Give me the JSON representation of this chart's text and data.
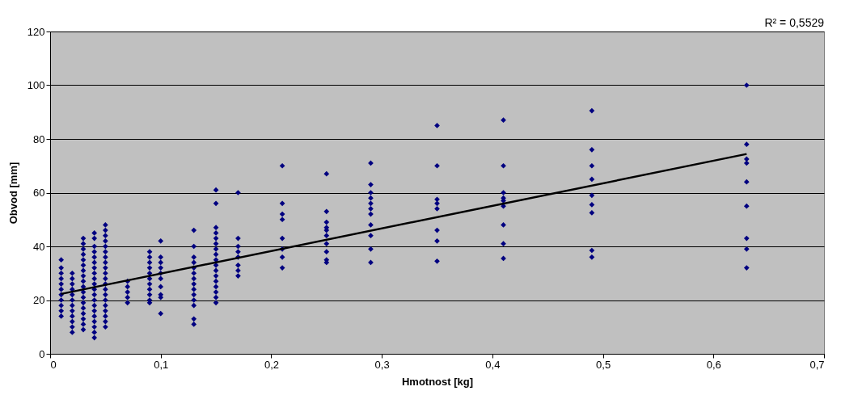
{
  "chart_data": {
    "type": "scatter",
    "xlabel": "Hmotnost [kg]",
    "ylabel": "Obvod [mm]",
    "annotations": [
      "R² = 0,5529"
    ],
    "xlim": [
      0,
      0.7
    ],
    "ylim": [
      0,
      120
    ],
    "xticks": [
      {
        "value": 0,
        "label": "0"
      },
      {
        "value": 0.1,
        "label": "0,1"
      },
      {
        "value": 0.2,
        "label": "0,2"
      },
      {
        "value": 0.3,
        "label": "0,3"
      },
      {
        "value": 0.4,
        "label": "0,4"
      },
      {
        "value": 0.5,
        "label": "0,5"
      },
      {
        "value": 0.6,
        "label": "0,6"
      },
      {
        "value": 0.7,
        "label": "0,7"
      }
    ],
    "yticks": [
      0,
      20,
      40,
      60,
      80,
      100,
      120
    ],
    "grid": "y",
    "marker": "diamond",
    "series": [
      {
        "color": "#000080",
        "x": [
          0.01,
          0.01,
          0.01,
          0.01,
          0.01,
          0.01,
          0.01,
          0.01,
          0.01,
          0.01,
          0.01,
          0.02,
          0.02,
          0.02,
          0.02,
          0.02,
          0.02,
          0.02,
          0.02,
          0.02,
          0.02,
          0.02,
          0.02,
          0.03,
          0.03,
          0.03,
          0.03,
          0.03,
          0.03,
          0.03,
          0.03,
          0.03,
          0.03,
          0.03,
          0.03,
          0.03,
          0.03,
          0.03,
          0.03,
          0.03,
          0.03,
          0.04,
          0.04,
          0.04,
          0.04,
          0.04,
          0.04,
          0.04,
          0.04,
          0.04,
          0.04,
          0.04,
          0.04,
          0.04,
          0.04,
          0.04,
          0.04,
          0.04,
          0.04,
          0.04,
          0.04,
          0.05,
          0.05,
          0.05,
          0.05,
          0.05,
          0.05,
          0.05,
          0.05,
          0.05,
          0.05,
          0.05,
          0.05,
          0.05,
          0.05,
          0.05,
          0.05,
          0.05,
          0.05,
          0.05,
          0.05,
          0.07,
          0.07,
          0.07,
          0.07,
          0.07,
          0.09,
          0.09,
          0.09,
          0.09,
          0.09,
          0.09,
          0.09,
          0.09,
          0.09,
          0.09,
          0.09,
          0.1,
          0.1,
          0.1,
          0.1,
          0.1,
          0.1,
          0.1,
          0.1,
          0.1,
          0.1,
          0.13,
          0.13,
          0.13,
          0.13,
          0.13,
          0.13,
          0.13,
          0.13,
          0.13,
          0.13,
          0.13,
          0.13,
          0.13,
          0.13,
          0.15,
          0.15,
          0.15,
          0.15,
          0.15,
          0.15,
          0.15,
          0.15,
          0.15,
          0.15,
          0.15,
          0.15,
          0.15,
          0.15,
          0.15,
          0.15,
          0.15,
          0.17,
          0.17,
          0.17,
          0.17,
          0.17,
          0.17,
          0.17,
          0.17,
          0.21,
          0.21,
          0.21,
          0.21,
          0.21,
          0.21,
          0.21,
          0.21,
          0.25,
          0.25,
          0.25,
          0.25,
          0.25,
          0.25,
          0.25,
          0.25,
          0.25,
          0.25,
          0.29,
          0.29,
          0.29,
          0.29,
          0.29,
          0.29,
          0.29,
          0.29,
          0.29,
          0.29,
          0.29,
          0.35,
          0.35,
          0.35,
          0.35,
          0.35,
          0.35,
          0.35,
          0.35,
          0.41,
          0.41,
          0.41,
          0.41,
          0.41,
          0.41,
          0.41,
          0.41,
          0.41,
          0.49,
          0.49,
          0.49,
          0.49,
          0.49,
          0.49,
          0.49,
          0.49,
          0.49,
          0.63,
          0.63,
          0.63,
          0.63,
          0.63,
          0.63,
          0.63,
          0.63,
          0.63
        ],
        "values": [
          35,
          32,
          30,
          28,
          26,
          24,
          22,
          20,
          18,
          16,
          14,
          30,
          28,
          26,
          24,
          22,
          20,
          18,
          16,
          14,
          12,
          10,
          8,
          43,
          41,
          39,
          37,
          35,
          33,
          31,
          29,
          27,
          25,
          23,
          21,
          19,
          17,
          15,
          13,
          11,
          9,
          45,
          43,
          40,
          38,
          36,
          34,
          32,
          30,
          28,
          26,
          24,
          22,
          20,
          18,
          16,
          14,
          12,
          10,
          8,
          6,
          48,
          46,
          44,
          42,
          40,
          38,
          36,
          34,
          32,
          30,
          28,
          26,
          24,
          22,
          20,
          18,
          16,
          14,
          12,
          10,
          27,
          25,
          23,
          21,
          19,
          38,
          36,
          34,
          32,
          30,
          28,
          26,
          24,
          22,
          20,
          19,
          42,
          36,
          34,
          32,
          30,
          28,
          25,
          22,
          21,
          15,
          46,
          40,
          36,
          34,
          32,
          30,
          28,
          26,
          24,
          22,
          20,
          18,
          13,
          11,
          61,
          56,
          47,
          45,
          43,
          41,
          39,
          37,
          35,
          33,
          31,
          29,
          27,
          25,
          23,
          21,
          19,
          60,
          43,
          40,
          38,
          36,
          33,
          31,
          29,
          70,
          56,
          52,
          50,
          43,
          39,
          36,
          32,
          67,
          53,
          49,
          47,
          46,
          44,
          41,
          38,
          35,
          34,
          71,
          63,
          60,
          58,
          56,
          54,
          52,
          48,
          44,
          39,
          34,
          85,
          70,
          57.5,
          56,
          54,
          46,
          42,
          34.5,
          87,
          70,
          60,
          58,
          57,
          55,
          48,
          41,
          35.5,
          90.5,
          76,
          70,
          65,
          59,
          55.5,
          52.5,
          38.5,
          36,
          100,
          78,
          72.5,
          71,
          64,
          55,
          43,
          39,
          32
        ]
      },
      {
        "type": "line",
        "marker": "none",
        "color": "#000000",
        "x": [
          0.01,
          0.63
        ],
        "values": [
          22.3,
          74.4
        ]
      }
    ]
  }
}
